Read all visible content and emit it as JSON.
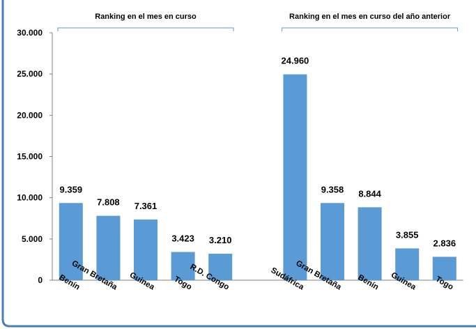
{
  "chart_data": {
    "type": "bar",
    "ylim": [
      0,
      30000
    ],
    "yticks": [
      "0",
      "5.000",
      "10.000",
      "15.000",
      "20.000",
      "25.000",
      "30.000"
    ],
    "grid": false,
    "colors": {
      "bar": "#5B9BD5",
      "frame": "#4A7EBB",
      "bracket": "#5B9BD5"
    },
    "groups": [
      {
        "label": "Ranking en el mes en curso",
        "categories": [
          "Benín",
          "Gran Bretaña",
          "Guinea",
          "Togo",
          "R.D. Congo"
        ],
        "values": [
          9359,
          7808,
          7361,
          3423,
          3210
        ],
        "value_labels": [
          "9.359",
          "7.808",
          "7.361",
          "3.423",
          "3.210"
        ]
      },
      {
        "label": "Ranking en el mes en curso del año anterior",
        "categories": [
          "Sudáfrica",
          "Gran Bretaña",
          "Benín",
          "Guinea",
          "Togo"
        ],
        "values": [
          24960,
          9358,
          8844,
          3855,
          2836
        ],
        "value_labels": [
          "24.960",
          "9.358",
          "8.844",
          "3.855",
          "2.836"
        ]
      }
    ]
  }
}
